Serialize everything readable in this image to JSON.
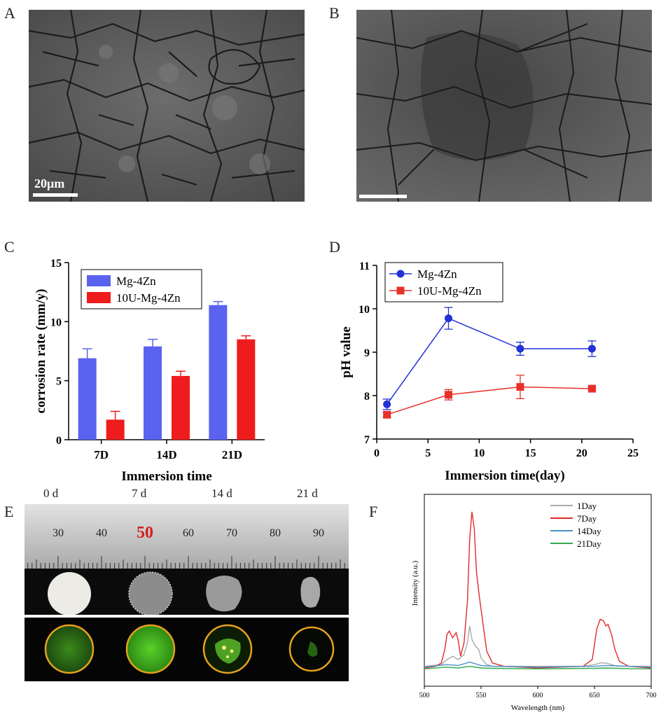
{
  "panels": {
    "A": {
      "letter": "A",
      "scale_label": "20μm"
    },
    "B": {
      "letter": "B"
    },
    "C": {
      "letter": "C"
    },
    "D": {
      "letter": "D"
    },
    "E": {
      "letter": "E",
      "day_labels": [
        "0 d",
        "7 d",
        "14 d",
        "21 d"
      ],
      "ruler_numbers": [
        "30",
        "40",
        "50",
        "60",
        "70",
        "80",
        "90"
      ],
      "highlight_number": "50",
      "highlight_color": "#d42020",
      "ring_color": "#e6a21c"
    },
    "F": {
      "letter": "F"
    }
  },
  "colors": {
    "mg4zn": "#5a62f0",
    "u10": "#ee1c1c",
    "mg4zn_line": "#2232d6",
    "u10_line": "#e8302a"
  },
  "chart_data": [
    {
      "id": "C",
      "type": "bar",
      "xlabel": "Immersion time",
      "ylabel": "corrosion rate (mm/y)",
      "categories": [
        "7D",
        "14D",
        "21D"
      ],
      "ylim": [
        0,
        15
      ],
      "yticks": [
        "0",
        "5",
        "10",
        "15"
      ],
      "series": [
        {
          "name": "Mg-4Zn",
          "values": [
            6.9,
            7.9,
            11.4
          ],
          "errors": [
            0.8,
            0.6,
            0.3
          ],
          "color": "#5a62f0"
        },
        {
          "name": "10U-Mg-4Zn",
          "values": [
            1.7,
            5.4,
            8.5
          ],
          "errors": [
            0.7,
            0.4,
            0.3
          ],
          "color": "#ee1c1c"
        }
      ],
      "legend": "top-left",
      "grid": false
    },
    {
      "id": "D",
      "type": "line",
      "xlabel": "Immersion time(day)",
      "ylabel": "pH value",
      "xlim": [
        0,
        25
      ],
      "ylim": [
        7,
        11
      ],
      "xticks": [
        "0",
        "5",
        "10",
        "15",
        "20",
        "25"
      ],
      "yticks": [
        "7",
        "8",
        "9",
        "10",
        "11"
      ],
      "series": [
        {
          "name": "Mg-4Zn",
          "x": [
            1,
            7,
            14,
            21
          ],
          "values": [
            7.8,
            9.78,
            9.08,
            9.08
          ],
          "errors": [
            0.12,
            0.25,
            0.15,
            0.18
          ],
          "color": "#2232d6",
          "marker": "circle"
        },
        {
          "name": "10U-Mg-4Zn",
          "x": [
            1,
            7,
            14,
            21
          ],
          "values": [
            7.56,
            8.02,
            8.2,
            8.16
          ],
          "errors": [
            0.06,
            0.12,
            0.27,
            0.03
          ],
          "color": "#e8302a",
          "marker": "square"
        }
      ],
      "legend": "top-left",
      "grid": false
    },
    {
      "id": "F",
      "type": "line",
      "xlabel": "Wavelength (nm)",
      "ylabel": "Intensity (a.u.)",
      "xlim": [
        500,
        700
      ],
      "xticks": [
        "500",
        "550",
        "600",
        "650",
        "700"
      ],
      "series": [
        {
          "name": "1Day",
          "color": "#a9a9a9",
          "x": [
            500,
            515,
            520,
            525,
            530,
            535,
            538,
            540,
            542,
            545,
            548,
            550,
            555,
            560,
            600,
            640,
            650,
            655,
            660,
            665,
            670,
            680,
            700
          ],
          "values": [
            0.06,
            0.07,
            0.1,
            0.12,
            0.1,
            0.13,
            0.2,
            0.3,
            0.22,
            0.18,
            0.16,
            0.11,
            0.07,
            0.06,
            0.06,
            0.06,
            0.07,
            0.08,
            0.08,
            0.07,
            0.06,
            0.06,
            0.06
          ]
        },
        {
          "name": "7Day",
          "color": "#e22a2a",
          "x": [
            500,
            510,
            515,
            518,
            520,
            522,
            525,
            528,
            530,
            532,
            535,
            538,
            540,
            542,
            544,
            546,
            548,
            550,
            552,
            555,
            560,
            570,
            600,
            640,
            648,
            652,
            655,
            658,
            660,
            662,
            665,
            668,
            672,
            680,
            700
          ],
          "values": [
            0.05,
            0.06,
            0.08,
            0.16,
            0.25,
            0.27,
            0.23,
            0.26,
            0.21,
            0.12,
            0.2,
            0.45,
            0.82,
            0.98,
            0.88,
            0.62,
            0.5,
            0.4,
            0.3,
            0.15,
            0.08,
            0.06,
            0.05,
            0.06,
            0.1,
            0.28,
            0.34,
            0.33,
            0.3,
            0.31,
            0.25,
            0.16,
            0.09,
            0.06,
            0.05
          ]
        },
        {
          "name": "14Day",
          "color": "#4a93c9",
          "x": [
            500,
            520,
            530,
            540,
            550,
            560,
            600,
            650,
            660,
            680,
            700
          ],
          "values": [
            0.055,
            0.07,
            0.065,
            0.085,
            0.065,
            0.06,
            0.055,
            0.06,
            0.065,
            0.06,
            0.055
          ]
        },
        {
          "name": "21Day",
          "color": "#2faa4f",
          "x": [
            500,
            520,
            530,
            540,
            550,
            560,
            600,
            650,
            660,
            680,
            700
          ],
          "values": [
            0.045,
            0.055,
            0.05,
            0.06,
            0.05,
            0.048,
            0.045,
            0.048,
            0.05,
            0.046,
            0.045
          ]
        }
      ],
      "legend": "top-right",
      "grid": false
    }
  ]
}
